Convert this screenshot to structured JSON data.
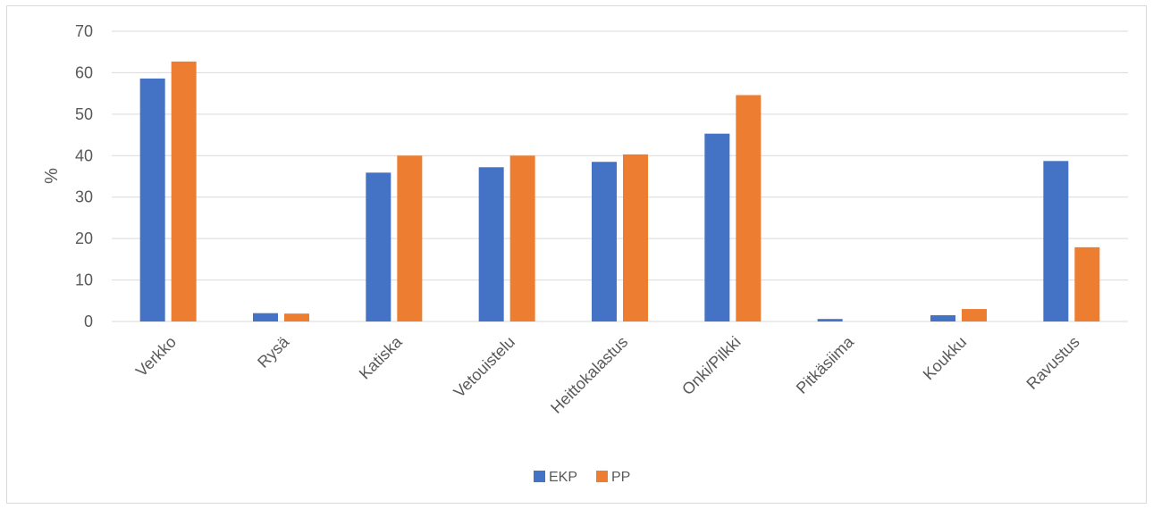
{
  "chart_data": {
    "type": "bar",
    "title": "",
    "xlabel": "",
    "ylabel": "%",
    "ylim": [
      0,
      70
    ],
    "yticks": [
      0,
      10,
      20,
      30,
      40,
      50,
      60,
      70
    ],
    "grid": true,
    "legend_position": "bottom",
    "categories": [
      "Verkko",
      "Rysä",
      "Katiska",
      "Vetouistelu",
      "Heittokalastus",
      "Onki/Pilkki",
      "Pitkäsiima",
      "Koukku",
      "Ravustus"
    ],
    "series": [
      {
        "name": "EKP",
        "color": "#4472C4",
        "values": [
          58.6,
          2.0,
          35.9,
          37.2,
          38.5,
          45.3,
          0.6,
          1.5,
          38.7
        ]
      },
      {
        "name": "PP",
        "color": "#ED7D31",
        "values": [
          62.7,
          1.9,
          40.0,
          40.0,
          40.3,
          54.6,
          0.0,
          3.0,
          17.9
        ]
      }
    ]
  }
}
